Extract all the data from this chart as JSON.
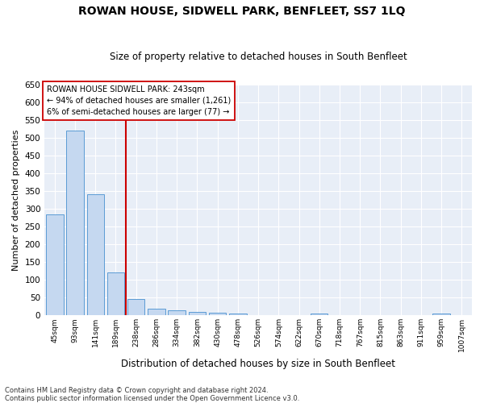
{
  "title": "ROWAN HOUSE, SIDWELL PARK, BENFLEET, SS7 1LQ",
  "subtitle": "Size of property relative to detached houses in South Benfleet",
  "xlabel": "Distribution of detached houses by size in South Benfleet",
  "ylabel": "Number of detached properties",
  "categories": [
    "45sqm",
    "93sqm",
    "141sqm",
    "189sqm",
    "238sqm",
    "286sqm",
    "334sqm",
    "382sqm",
    "430sqm",
    "478sqm",
    "526sqm",
    "574sqm",
    "622sqm",
    "670sqm",
    "718sqm",
    "767sqm",
    "815sqm",
    "863sqm",
    "911sqm",
    "959sqm",
    "1007sqm"
  ],
  "values": [
    285,
    520,
    340,
    120,
    47,
    18,
    15,
    10,
    8,
    5,
    0,
    0,
    0,
    5,
    0,
    0,
    0,
    0,
    0,
    5,
    0
  ],
  "bar_color": "#c5d8f0",
  "bar_edge_color": "#5b9bd5",
  "marker_line_color": "#cc0000",
  "annotation_box_color": "#ffffff",
  "annotation_box_edge": "#cc0000",
  "annotation_lines": [
    "ROWAN HOUSE SIDWELL PARK: 243sqm",
    "← 94% of detached houses are smaller (1,261)",
    "6% of semi-detached houses are larger (77) →"
  ],
  "ylim": [
    0,
    650
  ],
  "yticks": [
    0,
    50,
    100,
    150,
    200,
    250,
    300,
    350,
    400,
    450,
    500,
    550,
    600,
    650
  ],
  "footnote1": "Contains HM Land Registry data © Crown copyright and database right 2024.",
  "footnote2": "Contains public sector information licensed under the Open Government Licence v3.0.",
  "plot_bg_color": "#e8eef7",
  "grid_color": "#ffffff",
  "marker_line_index": 3.5
}
